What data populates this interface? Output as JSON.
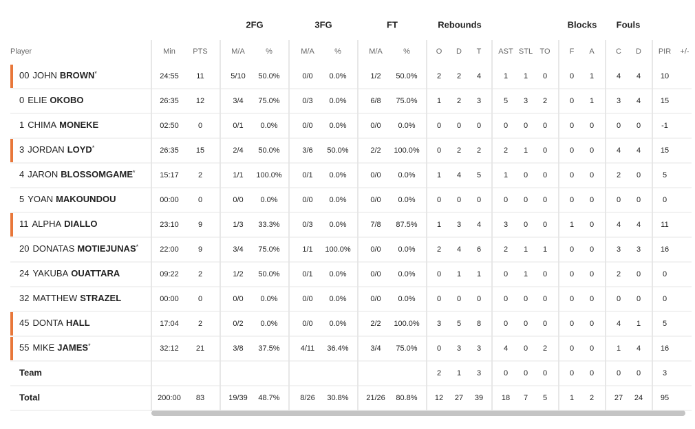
{
  "groups": [
    "2FG",
    "3FG",
    "FT",
    "Rebounds",
    "Blocks",
    "Fouls"
  ],
  "columns": [
    "Player",
    "Min",
    "PTS",
    "M/A",
    "%",
    "M/A",
    "%",
    "M/A",
    "%",
    "O",
    "D",
    "T",
    "AST",
    "STL",
    "TO",
    "F",
    "A",
    "C",
    "D",
    "PIR",
    "+/-"
  ],
  "players": [
    {
      "number": "00",
      "first": "JOHN",
      "last": "BROWN",
      "star": "*",
      "on_court": true,
      "stats": [
        "24:55",
        11,
        "5/10",
        "50.0%",
        "0/0",
        "0.0%",
        "1/2",
        "50.0%",
        2,
        2,
        4,
        1,
        1,
        0,
        0,
        1,
        4,
        4,
        10
      ]
    },
    {
      "number": "0",
      "first": "ELIE",
      "last": "OKOBO",
      "on_court": false,
      "stats": [
        "26:35",
        12,
        "3/4",
        "75.0%",
        "0/3",
        "0.0%",
        "6/8",
        "75.0%",
        1,
        2,
        3,
        5,
        3,
        2,
        0,
        1,
        3,
        4,
        15
      ]
    },
    {
      "number": "1",
      "first": "CHIMA",
      "last": "MONEKE",
      "on_court": false,
      "stats": [
        "02:50",
        0,
        "0/1",
        "0.0%",
        "0/0",
        "0.0%",
        "0/0",
        "0.0%",
        0,
        0,
        0,
        0,
        0,
        0,
        0,
        0,
        0,
        0,
        -1
      ]
    },
    {
      "number": "3",
      "first": "JORDAN",
      "last": "LOYD",
      "star": "*",
      "on_court": true,
      "stats": [
        "26:35",
        15,
        "2/4",
        "50.0%",
        "3/6",
        "50.0%",
        "2/2",
        "100.0%",
        0,
        2,
        2,
        2,
        1,
        0,
        0,
        0,
        4,
        4,
        15
      ]
    },
    {
      "number": "4",
      "first": "JARON",
      "last": "BLOSSOMGAME",
      "star": "*",
      "on_court": false,
      "stats": [
        "15:17",
        2,
        "1/1",
        "100.0%",
        "0/1",
        "0.0%",
        "0/0",
        "0.0%",
        1,
        4,
        5,
        1,
        0,
        0,
        0,
        0,
        2,
        0,
        5
      ]
    },
    {
      "number": "5",
      "first": "YOAN",
      "last": "MAKOUNDOU",
      "on_court": false,
      "stats": [
        "00:00",
        0,
        "0/0",
        "0.0%",
        "0/0",
        "0.0%",
        "0/0",
        "0.0%",
        0,
        0,
        0,
        0,
        0,
        0,
        0,
        0,
        0,
        0,
        0
      ]
    },
    {
      "number": "11",
      "first": "ALPHA",
      "last": "DIALLO",
      "on_court": true,
      "stats": [
        "23:10",
        9,
        "1/3",
        "33.3%",
        "0/3",
        "0.0%",
        "7/8",
        "87.5%",
        1,
        3,
        4,
        3,
        0,
        0,
        1,
        0,
        4,
        4,
        11
      ]
    },
    {
      "number": "20",
      "first": "DONATAS",
      "last": "MOTIEJUNAS",
      "star": "*",
      "on_court": false,
      "stats": [
        "22:00",
        9,
        "3/4",
        "75.0%",
        "1/1",
        "100.0%",
        "0/0",
        "0.0%",
        2,
        4,
        6,
        2,
        1,
        1,
        0,
        0,
        3,
        3,
        16
      ]
    },
    {
      "number": "24",
      "first": "YAKUBA",
      "last": "OUATTARA",
      "on_court": false,
      "stats": [
        "09:22",
        2,
        "1/2",
        "50.0%",
        "0/1",
        "0.0%",
        "0/0",
        "0.0%",
        0,
        1,
        1,
        0,
        1,
        0,
        0,
        0,
        2,
        0,
        0
      ]
    },
    {
      "number": "32",
      "first": "MATTHEW",
      "last": "STRAZEL",
      "on_court": false,
      "stats": [
        "00:00",
        0,
        "0/0",
        "0.0%",
        "0/0",
        "0.0%",
        "0/0",
        "0.0%",
        0,
        0,
        0,
        0,
        0,
        0,
        0,
        0,
        0,
        0,
        0
      ]
    },
    {
      "number": "45",
      "first": "DONTA",
      "last": "HALL",
      "on_court": true,
      "stats": [
        "17:04",
        2,
        "0/2",
        "0.0%",
        "0/0",
        "0.0%",
        "2/2",
        "100.0%",
        3,
        5,
        8,
        0,
        0,
        0,
        0,
        0,
        4,
        1,
        5
      ]
    },
    {
      "number": "55",
      "first": "MIKE",
      "last": "JAMES",
      "star": "*",
      "on_court": true,
      "stats": [
        "32:12",
        21,
        "3/8",
        "37.5%",
        "4/11",
        "36.4%",
        "3/4",
        "75.0%",
        0,
        3,
        3,
        4,
        0,
        2,
        0,
        0,
        1,
        4,
        16
      ]
    }
  ],
  "team": {
    "label": "Team",
    "stats": [
      null,
      null,
      null,
      null,
      null,
      null,
      null,
      null,
      2,
      1,
      3,
      0,
      0,
      0,
      0,
      0,
      0,
      0,
      3
    ]
  },
  "total": {
    "label": "Total",
    "stats": [
      "200:00",
      83,
      "19/39",
      "48.7%",
      "8/26",
      "30.8%",
      "21/26",
      "80.8%",
      12,
      27,
      39,
      18,
      7,
      5,
      1,
      2,
      27,
      24,
      95
    ]
  }
}
